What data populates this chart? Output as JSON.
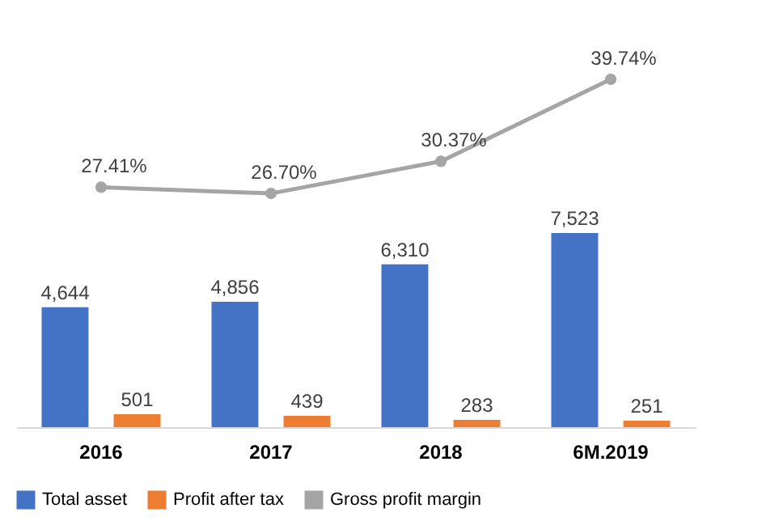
{
  "chart_data": [
    {
      "type": "bar",
      "categories": [
        "2016",
        "2017",
        "2018",
        "6M.2019"
      ],
      "series": [
        {
          "name": "Total asset",
          "color": "#4472c4",
          "values": [
            4644,
            4856,
            6310,
            7523
          ],
          "value_labels": [
            "4,644",
            "4,856",
            "6,310",
            "7,523"
          ]
        },
        {
          "name": "Profit after tax",
          "color": "#ed7d31",
          "values": [
            501,
            439,
            283,
            251
          ],
          "value_labels": [
            "501",
            "439",
            "283",
            "251"
          ]
        }
      ],
      "legend": "bottom",
      "grid": false,
      "tick_labels": "x"
    },
    {
      "type": "line",
      "categories": [
        null,
        null,
        null,
        null
      ],
      "series": [
        {
          "name": "Gross profit margin",
          "color": "#a5a5a5",
          "values": [
            27.41,
            26.7,
            30.37,
            39.74
          ],
          "value_labels": [
            "27.41%",
            "26.70%",
            "30.37%",
            "39.74%"
          ]
        }
      ],
      "marker": "circle",
      "legend": "bottom",
      "tick_labels": false
    }
  ]
}
